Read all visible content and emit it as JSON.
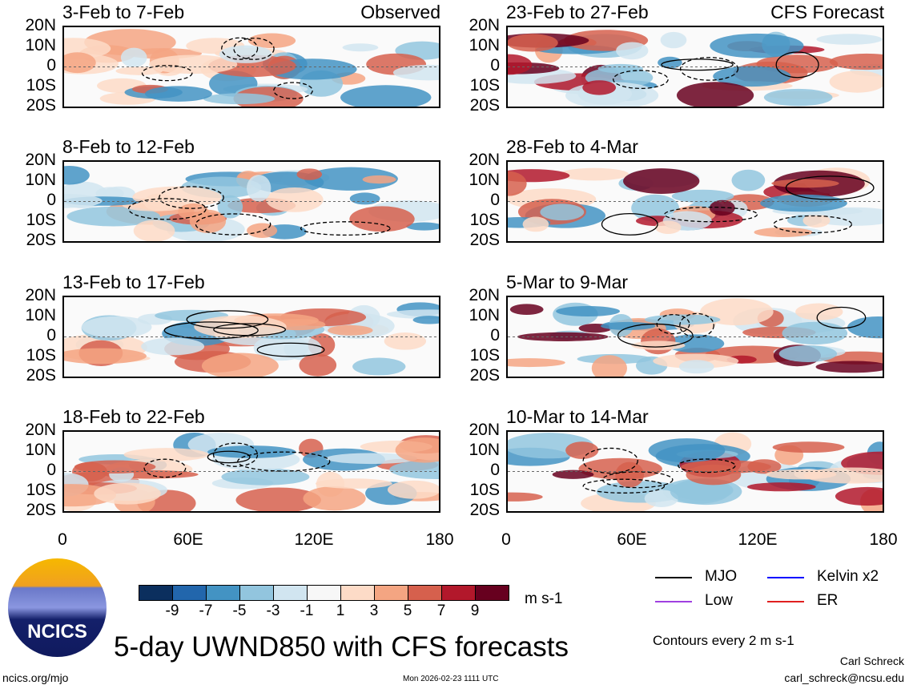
{
  "panels_left": [
    {
      "title": "3-Feb to 7-Feb",
      "label": "Observed"
    },
    {
      "title": "8-Feb to 12-Feb",
      "label": ""
    },
    {
      "title": "13-Feb to 17-Feb",
      "label": ""
    },
    {
      "title": "18-Feb to 22-Feb",
      "label": ""
    }
  ],
  "panels_right": [
    {
      "title": "23-Feb to 27-Feb",
      "label": "CFS Forecast"
    },
    {
      "title": "28-Feb to 4-Mar",
      "label": ""
    },
    {
      "title": "5-Mar to 9-Mar",
      "label": ""
    },
    {
      "title": "10-Mar to 14-Mar",
      "label": ""
    }
  ],
  "lat_ticks": [
    "20N",
    "10N",
    "0",
    "10S",
    "20S"
  ],
  "lon_ticks": [
    "0",
    "60E",
    "120E",
    "180"
  ],
  "colorbar": {
    "colors": [
      "#0b2f5e",
      "#2266ac",
      "#4393c3",
      "#92c5de",
      "#d1e5f0",
      "#f7f7f7",
      "#fddbc7",
      "#f4a582",
      "#d6604d",
      "#b2182b",
      "#67001f"
    ],
    "labels": [
      "-9",
      "-7",
      "-5",
      "-3",
      "-1",
      "1",
      "3",
      "5",
      "7",
      "9"
    ],
    "units": "m s-1"
  },
  "legend": [
    {
      "name": "MJO",
      "color": "#000000"
    },
    {
      "name": "Kelvin x2",
      "color": "#0000ff"
    },
    {
      "name": "Low",
      "color": "#a040e0"
    },
    {
      "name": "ER",
      "color": "#e02020"
    }
  ],
  "contour_note": "Contours every 2 m s-1",
  "title": "5-day UWND850 with CFS forecasts",
  "logo_text": "NCICS",
  "footer": {
    "url": "ncics.org/mjo",
    "timestamp": "Mon 2026-02-23 1111 UTC",
    "author": "Carl Schreck",
    "email": "carl_schreck@ncsu.edu"
  }
}
